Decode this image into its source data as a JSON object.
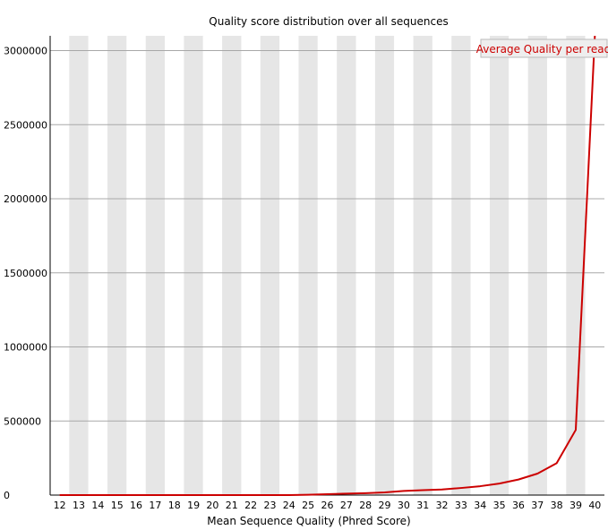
{
  "chart_data": {
    "type": "line",
    "title": "Quality score distribution over all sequences",
    "xlabel": "Mean Sequence Quality (Phred Score)",
    "ylabel": "",
    "x": [
      12,
      13,
      14,
      15,
      16,
      17,
      18,
      19,
      20,
      21,
      22,
      23,
      24,
      25,
      26,
      27,
      28,
      29,
      30,
      31,
      32,
      33,
      34,
      35,
      36,
      37,
      38,
      39,
      40
    ],
    "series": [
      {
        "name": "Average Quality per read",
        "color": "#cc0000",
        "values": [
          0,
          0,
          0,
          0,
          0,
          0,
          0,
          0,
          0,
          0,
          0,
          0,
          0,
          2000,
          6000,
          10000,
          13000,
          18000,
          28000,
          33000,
          38000,
          48000,
          60000,
          78000,
          105000,
          145000,
          215000,
          440000,
          3100000
        ]
      }
    ],
    "ylim": [
      0,
      3100000
    ],
    "yticks": [
      0,
      500000,
      1000000,
      1500000,
      2000000,
      2500000,
      3000000
    ],
    "grid": true,
    "legend_position": "top-right",
    "band_colors": [
      "#e6e6e6",
      "#ffffff"
    ]
  }
}
